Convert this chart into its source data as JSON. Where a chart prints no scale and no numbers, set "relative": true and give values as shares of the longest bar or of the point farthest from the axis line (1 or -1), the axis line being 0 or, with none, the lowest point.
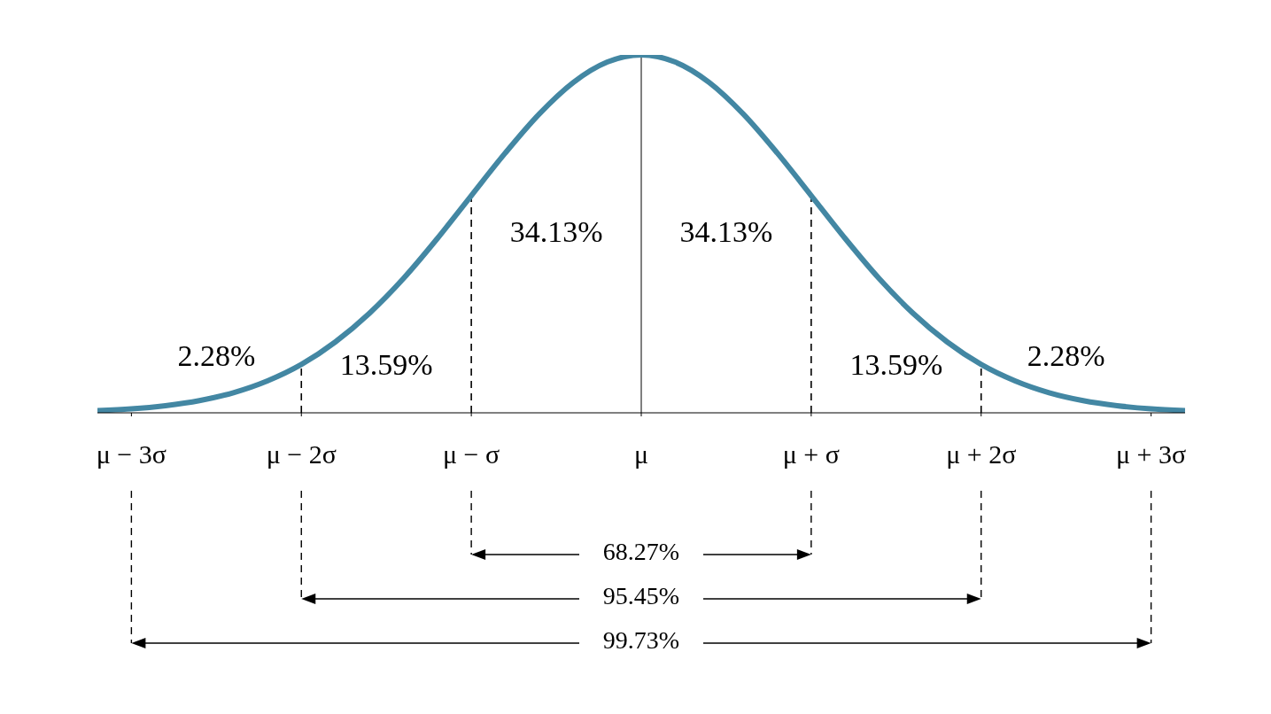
{
  "chart_data": {
    "type": "line",
    "relative": true,
    "x": [
      -3.2,
      -3.0,
      -2.8,
      -2.6,
      -2.4,
      -2.2,
      -2.0,
      -1.8,
      -1.6,
      -1.4,
      -1.2,
      -1.0,
      -0.8,
      -0.6,
      -0.4,
      -0.2,
      0,
      0.2,
      0.4,
      0.6,
      0.8,
      1.0,
      1.2,
      1.4,
      1.6,
      1.8,
      2.0,
      2.2,
      2.4,
      2.6,
      2.8,
      3.0,
      3.2
    ],
    "series": [
      {
        "color": "#4387a3",
        "values": [
          0.006,
          0.011,
          0.02,
          0.034,
          0.056,
          0.089,
          0.135,
          0.198,
          0.278,
          0.375,
          0.487,
          0.607,
          0.726,
          0.835,
          0.923,
          0.98,
          1,
          0.98,
          0.923,
          0.835,
          0.726,
          0.607,
          0.487,
          0.375,
          0.278,
          0.198,
          0.135,
          0.089,
          0.056,
          0.034,
          0.02,
          0.011,
          0.006
        ]
      }
    ],
    "xlim": [
      -3.2,
      3.2
    ],
    "xticks": [
      {
        "value": -3,
        "label": "μ − 3σ"
      },
      {
        "value": -2,
        "label": "μ − 2σ"
      },
      {
        "value": -1,
        "label": "μ − σ"
      },
      {
        "value": 0,
        "label": "μ"
      },
      {
        "value": 1,
        "label": "μ + σ"
      },
      {
        "value": 2,
        "label": "μ + 2σ"
      },
      {
        "value": 3,
        "label": "μ + 3σ"
      }
    ],
    "ref_lines": [
      {
        "axis": "x",
        "value": -2,
        "line_style": "dashed"
      },
      {
        "axis": "x",
        "value": -1,
        "line_style": "dashed"
      },
      {
        "axis": "x",
        "value": 0,
        "line_style": "solid"
      },
      {
        "axis": "x",
        "value": 1,
        "line_style": "dashed"
      },
      {
        "axis": "x",
        "value": 2,
        "line_style": "dashed"
      }
    ],
    "annotations": [
      "2.28%",
      "13.59%",
      "34.13%",
      "34.13%",
      "13.59%",
      "2.28%",
      "68.27%",
      "95.45%",
      "99.73%"
    ]
  }
}
